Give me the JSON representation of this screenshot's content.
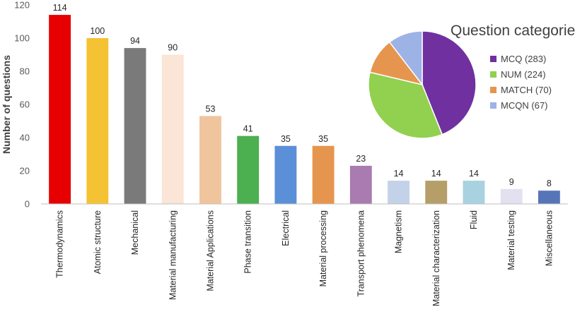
{
  "chart_data": [
    {
      "type": "bar",
      "title": "",
      "xlabel": "",
      "ylabel": "Number of questions",
      "ylim": [
        0,
        120
      ],
      "yticks": [
        0,
        20,
        40,
        60,
        80,
        100,
        120
      ],
      "grid": false,
      "categories": [
        "Thermodynamics",
        "Atomic structure",
        "Mechanical",
        "Material manufacturing",
        "Material Applications",
        "Phase transition",
        "Electrical",
        "Material processing",
        "Transport phenomena",
        "Magnetism",
        "Material characterization",
        "Fluid",
        "Material testing",
        "Miscellaneous"
      ],
      "values": [
        114,
        100,
        94,
        90,
        53,
        41,
        35,
        35,
        23,
        14,
        14,
        14,
        9,
        8
      ],
      "colors": [
        "#e60000",
        "#f5c233",
        "#7a7a7a",
        "#fbe5d6",
        "#f0c49d",
        "#4caf50",
        "#5b8fd8",
        "#e6954e",
        "#a97bb0",
        "#c3d2e8",
        "#b59e68",
        "#a8d2e0",
        "#e3e0f0",
        "#5575b8"
      ]
    },
    {
      "type": "pie",
      "title": "Question categories",
      "legend_position": "right",
      "labels": [
        "MCQ (283)",
        "NUM (224)",
        "MATCH (70)",
        "MCQN (67)"
      ],
      "values": [
        283,
        224,
        70,
        67
      ],
      "colors": [
        "#7030a0",
        "#92d050",
        "#e6954e",
        "#9db3e6"
      ]
    }
  ]
}
